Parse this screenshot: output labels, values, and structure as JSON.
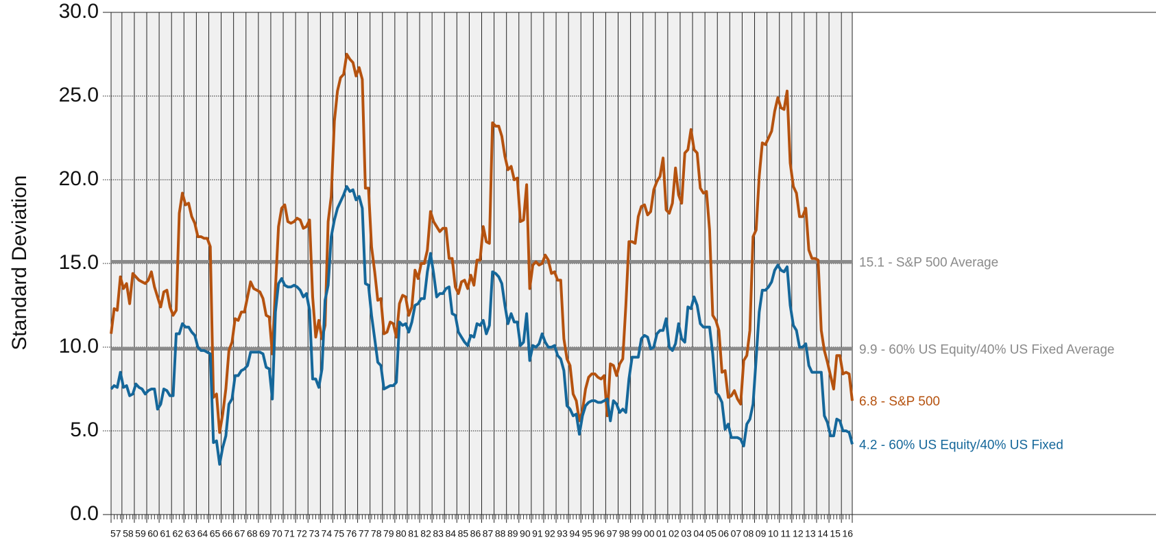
{
  "chart_data": {
    "type": "line",
    "y_label": "Standard Deviation",
    "ylim": [
      0,
      30
    ],
    "yticks": [
      {
        "value": 0,
        "label": "0.0"
      },
      {
        "value": 5,
        "label": "5.0"
      },
      {
        "value": 10,
        "label": "10.0"
      },
      {
        "value": 15,
        "label": "15.0"
      },
      {
        "value": 20,
        "label": "20.0"
      },
      {
        "value": 25,
        "label": "25.0"
      },
      {
        "value": 30,
        "label": "30.0"
      }
    ],
    "grid": true,
    "background": "#f0f0f0",
    "categories": [
      "57",
      null,
      null,
      null,
      "58",
      null,
      null,
      null,
      "59",
      null,
      null,
      null,
      "60",
      null,
      null,
      null,
      "61",
      null,
      null,
      null,
      "62",
      null,
      null,
      null,
      "63",
      null,
      null,
      null,
      "64",
      null,
      null,
      null,
      "65",
      null,
      null,
      null,
      "66",
      null,
      null,
      null,
      "67",
      null,
      null,
      null,
      "68",
      null,
      null,
      null,
      "69",
      null,
      null,
      null,
      "70",
      null,
      null,
      null,
      "71",
      null,
      null,
      null,
      "72",
      null,
      null,
      null,
      "73",
      null,
      null,
      null,
      "74",
      null,
      null,
      null,
      "75",
      null,
      null,
      null,
      "76",
      null,
      null,
      null,
      "77",
      null,
      null,
      null,
      "78",
      null,
      null,
      null,
      "79",
      null,
      null,
      null,
      "80",
      null,
      null,
      null,
      "81",
      null,
      null,
      null,
      "82",
      null,
      null,
      null,
      "83",
      null,
      null,
      null,
      "84",
      null,
      null,
      null,
      "85",
      null,
      null,
      null,
      "86",
      null,
      null,
      null,
      "87",
      null,
      null,
      null,
      "88",
      null,
      null,
      null,
      "89",
      null,
      null,
      null,
      "90",
      null,
      null,
      null,
      "91",
      null,
      null,
      null,
      "92",
      null,
      null,
      null,
      "93",
      null,
      null,
      null,
      "94",
      null,
      null,
      null,
      "95",
      null,
      null,
      null,
      "96",
      null,
      null,
      null,
      "97",
      null,
      null,
      null,
      "98",
      null,
      null,
      null,
      "99",
      null,
      null,
      null,
      "00",
      null,
      null,
      null,
      "01",
      null,
      null,
      null,
      "02",
      null,
      null,
      null,
      "03",
      null,
      null,
      null,
      "04",
      null,
      null,
      null,
      "05",
      null,
      null,
      null,
      "06",
      null,
      null,
      null,
      "07",
      null,
      null,
      null,
      "08",
      null,
      null,
      null,
      "09",
      null,
      null,
      null,
      "10",
      null,
      null,
      null,
      "11",
      null,
      null,
      null,
      "12",
      null,
      null,
      null,
      "13",
      null,
      null,
      null,
      "14",
      null,
      null,
      null,
      "15",
      null,
      null,
      null,
      "16",
      null,
      null,
      null
    ],
    "series": [
      {
        "label": "6.8 - S&P 500",
        "color": "#b5520f",
        "values": [
          10.8,
          12.3,
          12.2,
          14.2,
          13.5,
          13.8,
          12.6,
          14.4,
          14.2,
          14.0,
          13.9,
          13.8,
          14.0,
          14.5,
          13.6,
          13.0,
          12.4,
          13.3,
          13.4,
          12.4,
          11.9,
          12.2,
          18.0,
          19.2,
          18.5,
          18.6,
          17.8,
          17.4,
          16.6,
          16.6,
          16.5,
          16.5,
          16.0,
          7.0,
          7.2,
          4.9,
          6.0,
          7.5,
          9.8,
          10.3,
          11.7,
          11.6,
          12.1,
          12.1,
          13.0,
          13.9,
          13.5,
          13.4,
          13.3,
          12.9,
          11.9,
          11.8,
          9.6,
          13.5,
          17.2,
          18.3,
          18.5,
          17.5,
          17.4,
          17.5,
          17.7,
          17.6,
          17.1,
          17.2,
          17.6,
          13.0,
          10.6,
          11.6,
          10.5,
          11.3,
          17.5,
          19.0,
          23.5,
          25.3,
          26.1,
          26.3,
          27.5,
          27.2,
          27.0,
          26.2,
          26.7,
          26.0,
          19.5,
          19.5,
          16.0,
          14.5,
          12.8,
          12.9,
          10.8,
          10.9,
          11.5,
          11.4,
          10.6,
          12.6,
          13.1,
          13.0,
          11.9,
          12.4,
          14.6,
          14.1,
          15.0,
          15.0,
          15.8,
          18.1,
          17.5,
          17.2,
          16.9,
          17.1,
          17.1,
          15.3,
          15.3,
          13.6,
          13.2,
          13.9,
          14.0,
          13.5,
          14.3,
          13.7,
          15.2,
          15.2,
          17.2,
          16.3,
          16.2,
          23.4,
          23.2,
          23.2,
          22.6,
          21.4,
          20.6,
          20.8,
          20.0,
          20.1,
          17.5,
          17.6,
          19.7,
          13.5,
          14.9,
          15.1,
          14.9,
          15.0,
          15.5,
          15.2,
          14.4,
          14.5,
          14.0,
          14.0,
          10.5,
          9.3,
          8.9,
          7.2,
          6.8,
          5.6,
          6.2,
          7.5,
          8.2,
          8.4,
          8.4,
          8.2,
          8.1,
          8.3,
          5.9,
          9.0,
          8.9,
          8.3,
          9.0,
          9.3,
          12.5,
          16.3,
          16.3,
          16.2,
          17.8,
          18.4,
          18.5,
          17.9,
          18.1,
          19.4,
          19.9,
          20.2,
          21.3,
          18.2,
          18.0,
          18.6,
          20.7,
          19.1,
          18.6,
          21.6,
          21.8,
          23.0,
          21.8,
          21.6,
          19.5,
          19.2,
          19.3,
          17.0,
          11.9,
          11.6,
          11.0,
          8.5,
          8.6,
          7.0,
          7.1,
          7.4,
          6.9,
          6.6,
          9.2,
          9.5,
          11.0,
          16.6,
          17.0,
          20.2,
          22.2,
          22.1,
          22.5,
          22.9,
          24.1,
          24.9,
          24.3,
          24.2,
          25.3,
          21.0,
          19.6,
          19.2,
          17.8,
          17.8,
          18.3,
          15.8,
          15.3,
          15.3,
          15.2,
          11.0,
          9.8,
          9.1,
          8.3,
          7.5,
          9.5,
          9.5,
          8.4,
          8.5,
          8.4,
          6.8
        ]
      },
      {
        "label": "4.2 - 60% US Equity/40% US Fixed",
        "color": "#15679a",
        "values": [
          7.5,
          7.7,
          7.6,
          8.5,
          7.6,
          7.7,
          7.1,
          7.2,
          7.8,
          7.6,
          7.5,
          7.2,
          7.4,
          7.5,
          7.5,
          6.3,
          6.6,
          7.5,
          7.4,
          7.1,
          7.1,
          10.8,
          10.8,
          11.4,
          11.2,
          11.2,
          10.9,
          10.7,
          10.0,
          9.8,
          9.8,
          9.7,
          9.6,
          4.3,
          4.4,
          3.0,
          4.0,
          4.7,
          6.6,
          6.9,
          8.3,
          8.3,
          8.6,
          8.7,
          8.9,
          9.7,
          9.7,
          9.7,
          9.7,
          9.6,
          8.8,
          8.7,
          6.9,
          12.1,
          13.8,
          14.1,
          13.7,
          13.6,
          13.6,
          13.7,
          13.6,
          13.4,
          13.0,
          13.2,
          12.2,
          8.1,
          8.1,
          7.6,
          8.7,
          12.8,
          13.7,
          16.6,
          17.6,
          18.3,
          18.7,
          19.1,
          19.6,
          19.3,
          19.4,
          18.8,
          19.0,
          18.3,
          13.8,
          13.7,
          11.9,
          10.5,
          9.1,
          8.9,
          7.5,
          7.6,
          7.7,
          7.7,
          7.9,
          11.5,
          11.3,
          11.4,
          10.9,
          11.5,
          12.5,
          12.6,
          12.9,
          12.9,
          14.5,
          15.6,
          14.4,
          13.0,
          13.2,
          13.2,
          13.5,
          13.6,
          12.0,
          11.9,
          10.9,
          10.6,
          10.3,
          10.1,
          10.7,
          10.6,
          11.4,
          11.3,
          11.6,
          10.8,
          11.3,
          14.5,
          14.4,
          14.2,
          13.8,
          12.5,
          11.4,
          12.0,
          11.5,
          11.5,
          10.1,
          10.3,
          12.0,
          9.2,
          10.1,
          10.0,
          10.2,
          10.8,
          10.3,
          10.0,
          10.0,
          10.1,
          9.5,
          9.3,
          8.6,
          6.5,
          6.3,
          5.9,
          6.0,
          4.8,
          5.9,
          6.5,
          6.7,
          6.8,
          6.8,
          6.7,
          6.7,
          6.8,
          6.9,
          5.6,
          6.8,
          6.6,
          6.1,
          6.3,
          6.1,
          8.1,
          9.4,
          9.4,
          9.4,
          10.5,
          10.7,
          10.6,
          9.9,
          10.0,
          10.8,
          11.0,
          11.0,
          11.7,
          10.0,
          9.8,
          10.2,
          11.4,
          10.5,
          10.3,
          12.4,
          12.3,
          13.0,
          12.5,
          11.4,
          11.2,
          11.2,
          11.2,
          9.6,
          7.3,
          7.1,
          6.7,
          5.1,
          5.4,
          4.6,
          4.6,
          4.6,
          4.5,
          4.1,
          5.4,
          5.7,
          6.6,
          9.3,
          12.1,
          13.4,
          13.4,
          13.6,
          13.9,
          14.6,
          14.9,
          14.6,
          14.5,
          14.8,
          12.5,
          11.3,
          11.0,
          10.0,
          10.0,
          10.2,
          8.9,
          8.5,
          8.5,
          8.5,
          8.5,
          5.9,
          5.5,
          4.7,
          4.7,
          5.7,
          5.6,
          5.0,
          5.0,
          4.9,
          4.2
        ]
      }
    ],
    "reference_lines": [
      {
        "value": 15.1,
        "label": "15.1 - S&P 500 Average",
        "color": "#8a8a8a"
      },
      {
        "value": 9.9,
        "label": "9.9 - 60% US Equity/40% US Fixed Average",
        "color": "#8a8a8a"
      }
    ]
  }
}
